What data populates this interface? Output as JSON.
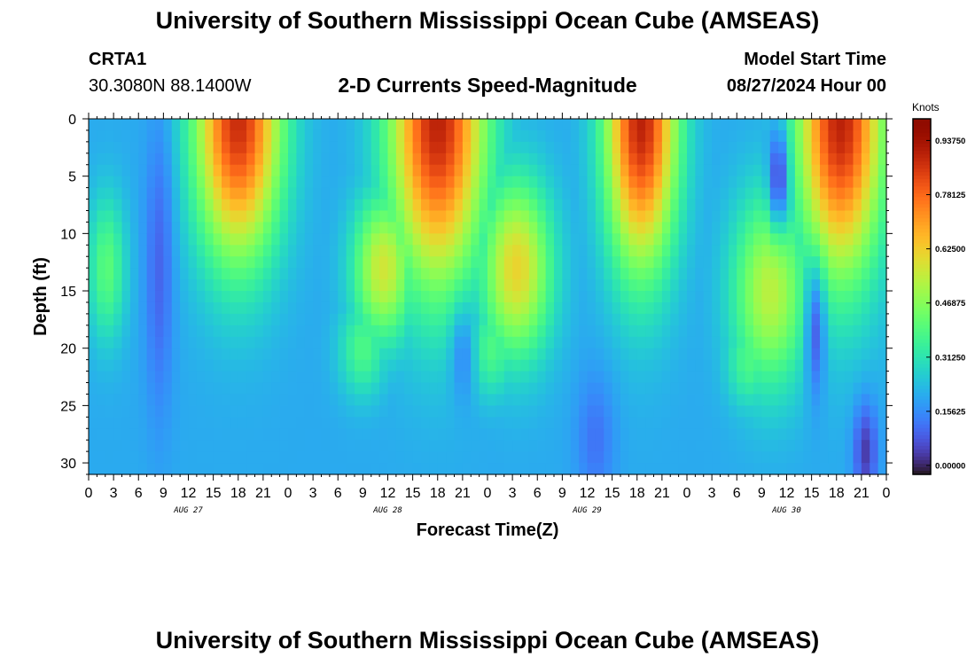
{
  "header": {
    "title": "University of Southern Mississippi Ocean Cube (AMSEAS)",
    "station_id": "CRTA1",
    "station_coords": "30.3080N  88.1400W",
    "chart_title": "2-D Currents Speed-Magnitude",
    "model_start_label": "Model Start Time",
    "model_start_value": "08/27/2024 Hour 00"
  },
  "footer": {
    "title": "University of Southern Mississippi Ocean Cube (AMSEAS)"
  },
  "chart_data": {
    "type": "heatmap",
    "xlabel": "Forecast Time(Z)",
    "ylabel": "Depth (ft)",
    "x_tick_labels": [
      "0",
      "3",
      "6",
      "9",
      "12",
      "15",
      "18",
      "21",
      "0",
      "3",
      "6",
      "9",
      "12",
      "15",
      "18",
      "21",
      "0",
      "3",
      "6",
      "9",
      "12",
      "15",
      "18",
      "21",
      "0",
      "3",
      "6",
      "9",
      "12",
      "15",
      "18",
      "21",
      "0"
    ],
    "x_range_hours": [
      0,
      96
    ],
    "y_range_ft": [
      0,
      31
    ],
    "y_ticks": [
      0,
      5,
      10,
      15,
      20,
      25,
      30
    ],
    "day_labels": [
      {
        "text": "AUG 27",
        "hour": 12
      },
      {
        "text": "AUG 28",
        "hour": 36
      },
      {
        "text": "AUG 29",
        "hour": 60
      },
      {
        "text": "AUG 30",
        "hour": 84
      }
    ],
    "colorbar": {
      "label": "Knots",
      "range": [
        0,
        1.0
      ],
      "tick_values": [
        0.0,
        0.15625,
        0.3125,
        0.46875,
        0.625,
        0.78125,
        0.9375
      ],
      "tick_labels": [
        "0.00000",
        "0.15625",
        "0.31250",
        "0.46875",
        "0.62500",
        "0.78125",
        "0.93750"
      ],
      "colormap": "turbo"
    },
    "features": {
      "comment_free": true,
      "blobs": [
        {
          "t": 18.0,
          "d": 0,
          "st": 3.6,
          "sd": 8.5,
          "v": 0.88
        },
        {
          "t": 35.5,
          "d": 13,
          "st": 2.6,
          "sd": 4.5,
          "v": 0.58
        },
        {
          "t": 42.0,
          "d": 0,
          "st": 4.0,
          "sd": 10.0,
          "v": 0.9
        },
        {
          "t": 51.5,
          "d": 13,
          "st": 3.0,
          "sd": 5.5,
          "v": 0.62
        },
        {
          "t": 66.5,
          "d": 0,
          "st": 3.0,
          "sd": 9.0,
          "v": 0.9
        },
        {
          "t": 82.0,
          "d": 15,
          "st": 3.2,
          "sd": 6.0,
          "v": 0.55
        },
        {
          "t": 90.5,
          "d": 0,
          "st": 3.6,
          "sd": 9.5,
          "v": 0.9
        },
        {
          "t": 2.2,
          "d": 13,
          "st": 1.6,
          "sd": 4.5,
          "v": 0.42
        },
        {
          "t": 33.0,
          "d": 20,
          "st": 2.0,
          "sd": 3.0,
          "v": 0.4
        },
        {
          "t": 48.5,
          "d": 20,
          "st": 2.0,
          "sd": 3.0,
          "v": 0.4
        },
        {
          "t": 79.5,
          "d": 21,
          "st": 2.0,
          "sd": 3.0,
          "v": 0.4
        }
      ],
      "lows": [
        {
          "t": 8.5,
          "d": 13,
          "st": 1.2,
          "sd": 9.0,
          "v": 0.12
        },
        {
          "t": 45.0,
          "d": 21,
          "st": 1.0,
          "sd": 3.0,
          "v": 0.18
        },
        {
          "t": 61.0,
          "d": 28,
          "st": 1.6,
          "sd": 4.0,
          "v": 0.14
        },
        {
          "t": 83.0,
          "d": 5,
          "st": 0.8,
          "sd": 3.0,
          "v": 0.08
        },
        {
          "t": 87.5,
          "d": 19,
          "st": 0.8,
          "sd": 4.0,
          "v": 0.12
        },
        {
          "t": 93.5,
          "d": 29,
          "st": 1.0,
          "sd": 3.0,
          "v": 0.06
        }
      ]
    }
  }
}
